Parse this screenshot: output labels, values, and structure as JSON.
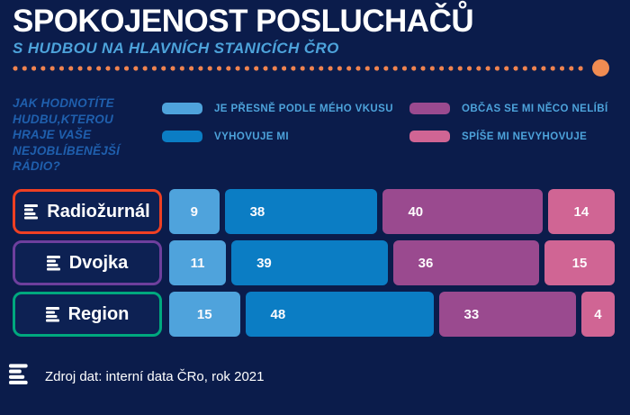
{
  "header": {
    "title": "SPOKOJENOST POSLUCHAČŮ",
    "subtitle": "S HUDBOU NA HLAVNÍCH STANICÍCH ČRO"
  },
  "question": {
    "text": "JAK HODNOTÍTE\nHUDBU,KTEROU\nHRAJE VAŠE\nNEJOBLÍBENĚJŠÍ\nRÁDIO?"
  },
  "chart_data": {
    "type": "bar",
    "orientation": "horizontal",
    "stacked": true,
    "data_labels": true,
    "legend_position": "top",
    "title": "SPOKOJENOST POSLUCHAČŮ S HUDBOU NA HLAVNÍCH STANICÍCH ČRO",
    "categories": [
      "Radiožurnál",
      "Dvojka",
      "Region"
    ],
    "category_border_colors": [
      "#ee4023",
      "#6e3f9d",
      "#00a87e"
    ],
    "series": [
      {
        "name": "JE PŘESNĚ PODLE MÉHO VKUSU",
        "color": "#4fa3dc",
        "values": [
          9,
          11,
          15
        ]
      },
      {
        "name": "VYHOVUJE MI",
        "color": "#0b7dc4",
        "values": [
          38,
          39,
          48
        ]
      },
      {
        "name": "OBČAS SE MI NĚCO NELÍBÍ",
        "color": "#9a4a8f",
        "values": [
          40,
          36,
          33
        ]
      },
      {
        "name": "SPÍŠE MI NEVYHOVUJE",
        "color": "#d06594",
        "values": [
          14,
          15,
          4
        ]
      }
    ]
  },
  "footer": {
    "source": "Zdroj dat: interní data ČRo, rok 2021"
  },
  "colors": {
    "background": "#0b1c4b",
    "title_text": "#ffffff",
    "subtitle_text": "#4da3db",
    "question_text": "#1f5fad",
    "legend_text": "#4da3db",
    "divider_dots": "#ef8350",
    "divider_end_dot": "#f08c52",
    "label_box_fill": "#0d2153",
    "bar_value_text": "#fdfbfd"
  },
  "icons": {
    "logo": "cro-logo-icon"
  }
}
